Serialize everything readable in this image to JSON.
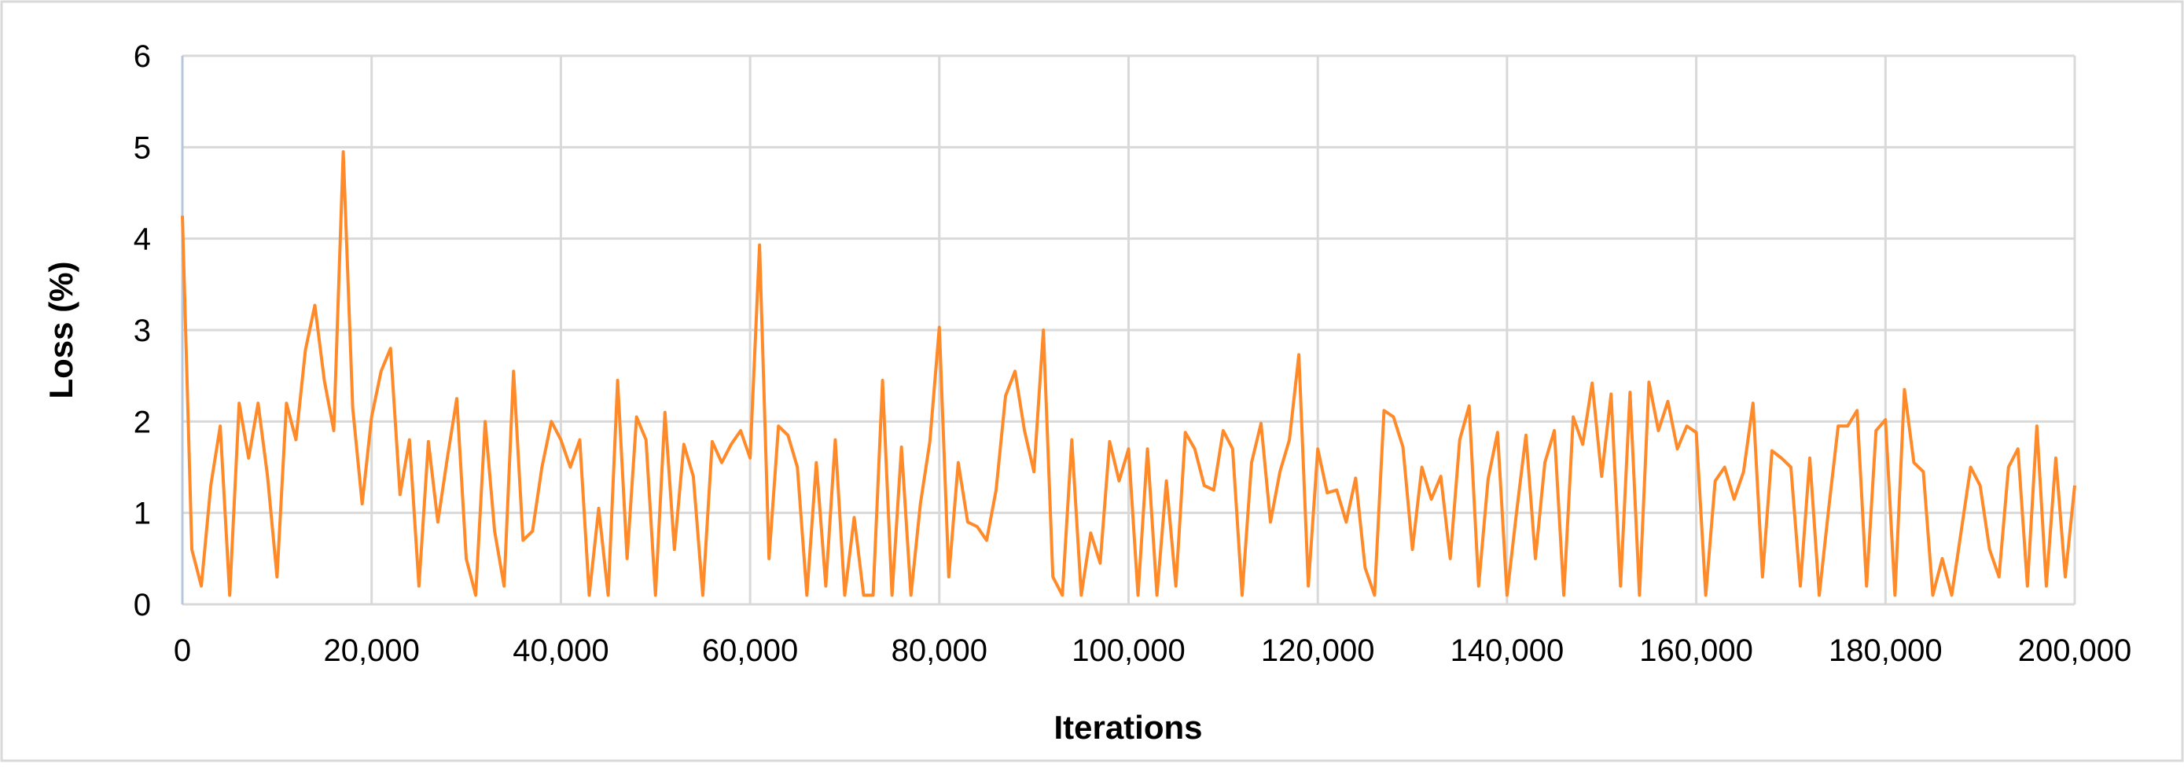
{
  "chart_data": {
    "type": "line",
    "x_label": "Iterations",
    "y_label": "Loss (%)",
    "color": "#ff8a2a",
    "xlim": [
      0,
      200000
    ],
    "ylim": [
      0,
      6
    ],
    "xticks": [
      0,
      {
        "value": 20000,
        "label": "20,000"
      },
      {
        "value": 40000,
        "label": "40,000"
      },
      {
        "value": 60000,
        "label": "60,000"
      },
      {
        "value": 80000,
        "label": "80,000"
      },
      {
        "value": 100000,
        "label": "100,000"
      },
      {
        "value": 120000,
        "label": "120,000"
      },
      {
        "value": 140000,
        "label": "140,000"
      },
      {
        "value": 160000,
        "label": "160,000"
      },
      {
        "value": 180000,
        "label": "180,000"
      },
      {
        "value": 200000,
        "label": "200,000"
      }
    ],
    "yticks": [
      0,
      1,
      2,
      3,
      4,
      5,
      6
    ],
    "grid": true,
    "x": [
      0,
      1000,
      2000,
      3000,
      4000,
      5000,
      6000,
      7000,
      8000,
      9000,
      10000,
      11000,
      12000,
      13000,
      14000,
      15000,
      16000,
      17000,
      18000,
      19000,
      20000,
      21000,
      22000,
      23000,
      24000,
      25000,
      26000,
      27000,
      28000,
      29000,
      30000,
      31000,
      32000,
      33000,
      34000,
      35000,
      36000,
      37000,
      38000,
      39000,
      40000,
      41000,
      42000,
      43000,
      44000,
      45000,
      46000,
      47000,
      48000,
      49000,
      50000,
      51000,
      52000,
      53000,
      54000,
      55000,
      56000,
      57000,
      58000,
      59000,
      60000,
      61000,
      62000,
      63000,
      64000,
      65000,
      66000,
      67000,
      68000,
      69000,
      70000,
      71000,
      72000,
      73000,
      74000,
      75000,
      76000,
      77000,
      78000,
      79000,
      80000,
      81000,
      82000,
      83000,
      84000,
      85000,
      86000,
      87000,
      88000,
      89000,
      90000,
      91000,
      92000,
      93000,
      94000,
      95000,
      96000,
      97000,
      98000,
      99000,
      100000,
      101000,
      102000,
      103000,
      104000,
      105000,
      106000,
      107000,
      108000,
      109000,
      110000,
      111000,
      112000,
      113000,
      114000,
      115000,
      116000,
      117000,
      118000,
      119000,
      120000,
      121000,
      122000,
      123000,
      124000,
      125000,
      126000,
      127000,
      128000,
      129000,
      130000,
      131000,
      132000,
      133000,
      134000,
      135000,
      136000,
      137000,
      138000,
      139000,
      140000,
      141000,
      142000,
      143000,
      144000,
      145000,
      146000,
      147000,
      148000,
      149000,
      150000,
      151000,
      152000,
      153000,
      154000,
      155000,
      156000,
      157000,
      158000,
      159000,
      160000,
      161000,
      162000,
      163000,
      164000,
      165000,
      166000,
      167000,
      168000,
      169000,
      170000,
      171000,
      172000,
      173000,
      174000,
      175000,
      176000,
      177000,
      178000,
      179000,
      180000,
      181000,
      182000,
      183000,
      184000,
      185000,
      186000,
      187000,
      188000,
      189000,
      190000,
      191000,
      192000,
      193000,
      194000,
      195000,
      196000,
      197000,
      198000,
      199000,
      200000
    ],
    "values": [
      4.25,
      0.6,
      0.2,
      1.3,
      1.95,
      0.1,
      2.2,
      1.6,
      2.2,
      1.4,
      0.3,
      2.2,
      1.8,
      2.78,
      3.27,
      2.45,
      1.9,
      4.95,
      2.15,
      1.1,
      2.05,
      2.55,
      2.8,
      1.2,
      1.8,
      0.2,
      1.78,
      0.9,
      1.6,
      2.25,
      0.5,
      0.1,
      2.0,
      0.8,
      0.2,
      2.55,
      0.7,
      0.8,
      1.5,
      2.0,
      1.8,
      1.5,
      1.8,
      0.1,
      1.05,
      0.1,
      2.45,
      0.5,
      2.05,
      1.8,
      0.1,
      2.1,
      0.6,
      1.75,
      1.4,
      0.1,
      1.78,
      1.55,
      1.75,
      1.9,
      1.6,
      3.93,
      0.5,
      1.95,
      1.85,
      1.5,
      0.1,
      1.55,
      0.2,
      1.8,
      0.1,
      0.95,
      0.1,
      0.1,
      2.45,
      0.1,
      1.72,
      0.1,
      1.1,
      1.78,
      3.03,
      0.3,
      1.55,
      0.9,
      0.85,
      0.7,
      1.25,
      2.28,
      2.55,
      1.9,
      1.45,
      3.0,
      0.3,
      0.1,
      1.8,
      0.1,
      0.78,
      0.45,
      1.78,
      1.35,
      1.7,
      0.1,
      1.7,
      0.1,
      1.35,
      0.2,
      1.88,
      1.7,
      1.3,
      1.25,
      1.9,
      1.7,
      0.1,
      1.55,
      1.98,
      0.9,
      1.45,
      1.8,
      2.73,
      0.2,
      1.7,
      1.22,
      1.25,
      0.9,
      1.38,
      0.4,
      0.1,
      2.12,
      2.05,
      1.72,
      0.6,
      1.5,
      1.15,
      1.4,
      0.5,
      1.8,
      2.17,
      0.2,
      1.37,
      1.88,
      0.1,
      1.0,
      1.85,
      0.5,
      1.55,
      1.9,
      0.1,
      2.05,
      1.75,
      2.42,
      1.4,
      2.3,
      0.2,
      2.32,
      0.1,
      2.43,
      1.9,
      2.22,
      1.7,
      1.95,
      1.88,
      0.1,
      1.35,
      1.5,
      1.15,
      1.45,
      2.2,
      0.3,
      1.68,
      1.6,
      1.5,
      0.2,
      1.6,
      0.1,
      1.05,
      1.95,
      1.95,
      2.12,
      0.2,
      1.9,
      2.02,
      0.1,
      2.35,
      1.55,
      1.45,
      0.1,
      0.5,
      0.1,
      0.8,
      1.5,
      1.3,
      0.6,
      0.3,
      1.5,
      1.7,
      0.2,
      1.95,
      0.2,
      1.6,
      0.3,
      1.3
    ]
  }
}
